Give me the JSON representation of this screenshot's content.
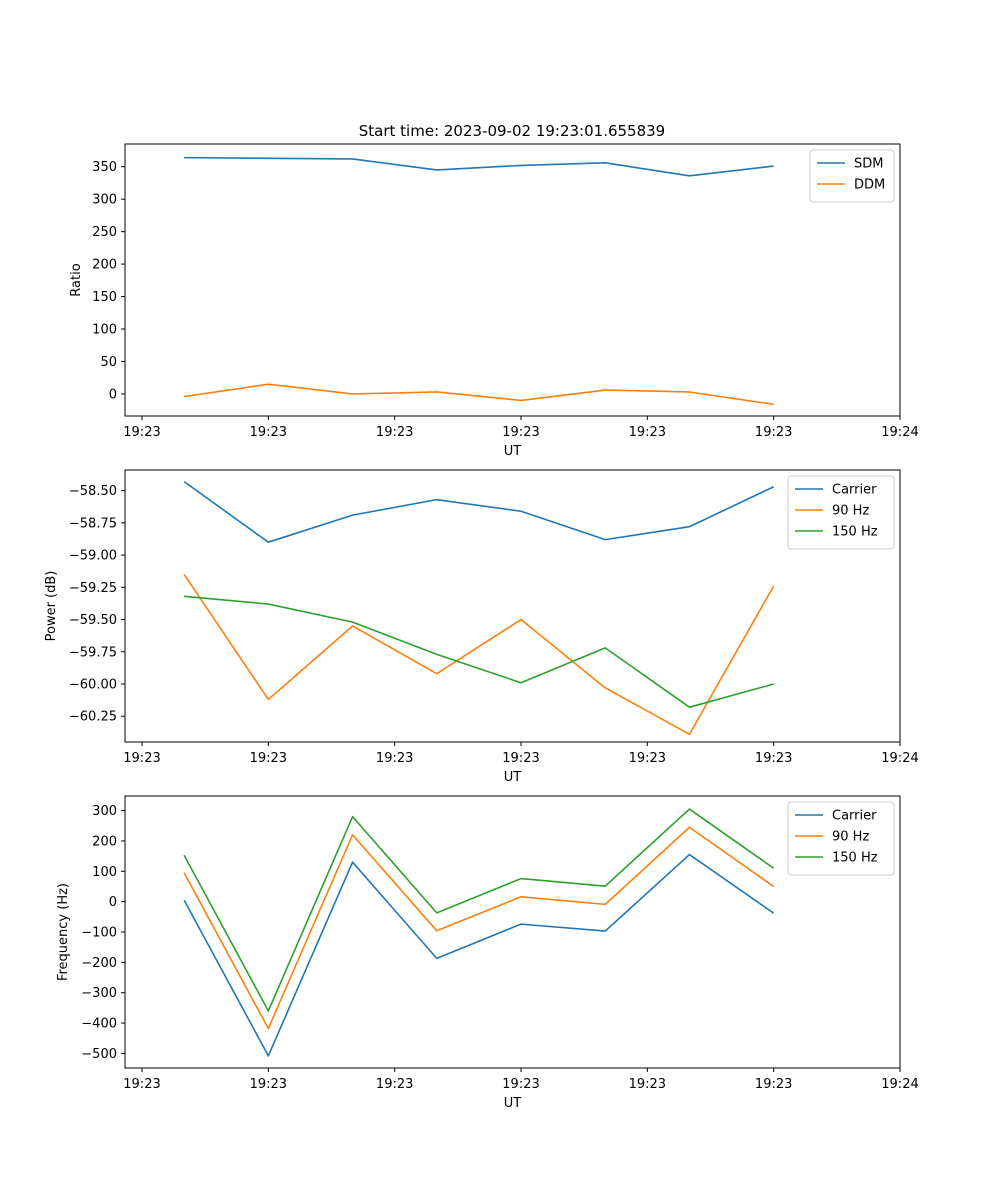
{
  "figure": {
    "title": "Start time: 2023-09-02 19:23:01.655839"
  },
  "chart_data": [
    {
      "type": "line",
      "title": "Start time: 2023-09-02 19:23:01.655839",
      "xlabel": "UT",
      "ylabel": "Ratio",
      "x_ticks": [
        "19:23",
        "19:23",
        "19:23",
        "19:23",
        "19:23",
        "19:23",
        "19:24"
      ],
      "y_ticks": [
        0,
        50,
        100,
        150,
        200,
        250,
        300,
        350
      ],
      "ylim": [
        -34,
        385
      ],
      "x": [
        1,
        2,
        3,
        4,
        5,
        6,
        7,
        8
      ],
      "series": [
        {
          "name": "SDM",
          "color": "#1f77b4",
          "values": [
            364,
            363,
            362,
            345,
            352,
            356,
            336,
            351
          ]
        },
        {
          "name": "DDM",
          "color": "#ff7f0e",
          "values": [
            -4,
            15,
            0,
            3,
            -10,
            6,
            3,
            -16
          ]
        }
      ],
      "legend": "top-right"
    },
    {
      "type": "line",
      "title": "",
      "xlabel": "UT",
      "ylabel": "Power (dB)",
      "x_ticks": [
        "19:23",
        "19:23",
        "19:23",
        "19:23",
        "19:23",
        "19:23",
        "19:24"
      ],
      "y_ticks": [
        -60.25,
        -60.0,
        -59.75,
        -59.5,
        -59.25,
        -59.0,
        -58.75,
        -58.5
      ],
      "y_tick_labels": [
        "−60.25",
        "−60.00",
        "−59.75",
        "−59.50",
        "−59.25",
        "−59.00",
        "−58.75",
        "−58.50"
      ],
      "ylim": [
        -60.45,
        -58.34
      ],
      "x": [
        1,
        2,
        3,
        4,
        5,
        6,
        7,
        8
      ],
      "series": [
        {
          "name": "Carrier",
          "color": "#1f77b4",
          "values": [
            -58.43,
            -58.9,
            -58.69,
            -58.57,
            -58.66,
            -58.88,
            -58.78,
            -58.47
          ]
        },
        {
          "name": "90 Hz",
          "color": "#ff7f0e",
          "values": [
            -59.15,
            -60.12,
            -59.55,
            -59.92,
            -59.5,
            -60.03,
            -60.39,
            -59.24
          ]
        },
        {
          "name": "150 Hz",
          "color": "#2ca02c",
          "values": [
            -59.32,
            -59.38,
            -59.52,
            -59.77,
            -59.99,
            -59.72,
            -60.18,
            -60.0
          ]
        }
      ],
      "legend": "top-right"
    },
    {
      "type": "line",
      "title": "",
      "xlabel": "UT",
      "ylabel": "Frequency (Hz)",
      "x_ticks": [
        "19:23",
        "19:23",
        "19:23",
        "19:23",
        "19:23",
        "19:23",
        "19:24"
      ],
      "y_ticks": [
        -500,
        -400,
        -300,
        -200,
        -100,
        0,
        100,
        200,
        300
      ],
      "y_tick_labels": [
        "−500",
        "−400",
        "−300",
        "−200",
        "−100",
        "0",
        "100",
        "200",
        "300"
      ],
      "ylim": [
        -548,
        348
      ],
      "x": [
        1,
        2,
        3,
        4,
        5,
        6,
        7,
        8
      ],
      "series": [
        {
          "name": "Carrier",
          "color": "#1f77b4",
          "values": [
            5,
            -508,
            130,
            -187,
            -74,
            -97,
            155,
            -38
          ]
        },
        {
          "name": "90 Hz",
          "color": "#ff7f0e",
          "values": [
            95,
            -418,
            220,
            -96,
            16,
            -9,
            245,
            50
          ]
        },
        {
          "name": "150 Hz",
          "color": "#2ca02c",
          "values": [
            153,
            -360,
            280,
            -37,
            76,
            51,
            305,
            110
          ]
        }
      ],
      "legend": "top-right"
    }
  ]
}
